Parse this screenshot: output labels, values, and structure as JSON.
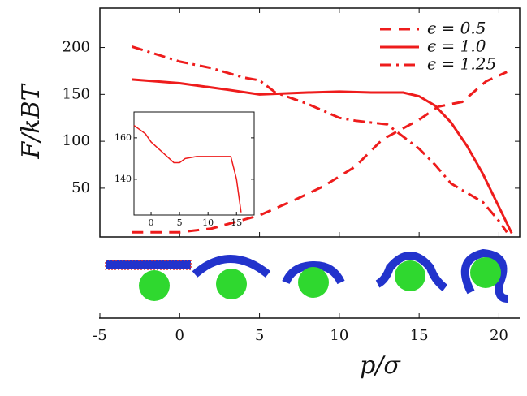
{
  "chart_data": [
    {
      "type": "line",
      "x_label": "p/σ",
      "y_label": "F/kBT",
      "xlim": [
        -5,
        21.3
      ],
      "ylim": [
        -2,
        242
      ],
      "xticks": [
        -5,
        0,
        5,
        10,
        15,
        20
      ],
      "yticks": [
        50,
        100,
        150,
        200
      ],
      "legend": "upper right",
      "series": [
        {
          "name": "ϵ = 0.5",
          "color": "#ee1c1c",
          "linestyle": "dashed",
          "x": [
            -3,
            0,
            2,
            5,
            7.4,
            9,
            11,
            12.7,
            15,
            16.2,
            17.7,
            19.2,
            20.5
          ],
          "values": [
            3,
            3,
            7,
            21,
            39,
            52,
            73,
            102,
            123,
            137,
            142,
            164,
            174
          ]
        },
        {
          "name": "ϵ = 1.0",
          "color": "#ee1c1c",
          "linestyle": "solid",
          "x": [
            -3,
            0,
            3,
            5,
            8,
            10,
            12,
            14,
            15,
            16,
            17,
            18,
            19,
            20,
            20.8
          ],
          "values": [
            166,
            162,
            155,
            150,
            152,
            153,
            152,
            152,
            148,
            138,
            120,
            95,
            65,
            30,
            2
          ]
        },
        {
          "name": "ϵ = 1.25",
          "color": "#ee1c1c",
          "linestyle": "dashdot",
          "x": [
            -3,
            0,
            2,
            4,
            5,
            6,
            8,
            10,
            11,
            13,
            14,
            15,
            16,
            17,
            18,
            19,
            20,
            20.5
          ],
          "values": [
            201,
            185,
            178,
            168,
            165,
            152,
            140,
            125,
            122,
            118,
            105,
            92,
            75,
            55,
            45,
            35,
            15,
            3
          ]
        }
      ]
    },
    {
      "type": "line",
      "xlim": [
        -3,
        18.1
      ],
      "ylim": [
        122.7,
        172.5
      ],
      "xticks": [
        0,
        5,
        10,
        15
      ],
      "yticks": [
        140,
        160
      ],
      "series": [
        {
          "color": "#ee1c1c",
          "linestyle": "solid",
          "x": [
            -3,
            -1,
            0,
            2,
            4,
            5,
            6,
            8,
            10,
            12,
            14,
            15,
            15.8
          ],
          "values": [
            166,
            162,
            158,
            153,
            148,
            148,
            150,
            151,
            151,
            151,
            151,
            140,
            124
          ]
        }
      ]
    }
  ]
}
